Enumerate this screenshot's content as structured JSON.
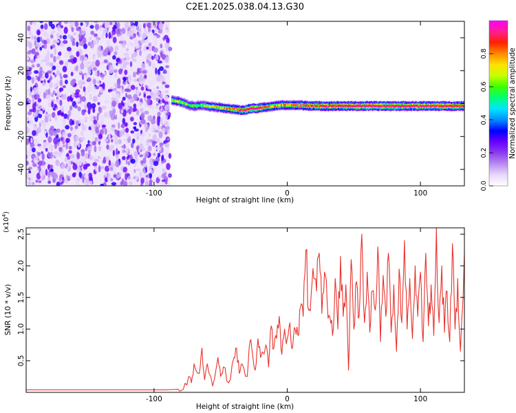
{
  "title": "C2E1.2025.038.04.13.G30",
  "colors": {
    "snr_line": "#e8302a",
    "spectro_scatter": "#8a2be2",
    "colormap": [
      "#ffffff",
      "#e7d7fb",
      "#b98cf0",
      "#8b3cf0",
      "#6a00ff",
      "#0000ff",
      "#0090ff",
      "#00e5ff",
      "#00ff7a",
      "#3cff00",
      "#c8ff00",
      "#ffe100",
      "#ff8a00",
      "#ff2000",
      "#ff1f8f",
      "#ff00ff"
    ]
  },
  "chart_data": [
    {
      "type": "heatmap",
      "xlabel": "Height of straight line (km)",
      "ylabel": "Frequency (Hz)",
      "xlim": [
        -196,
        133
      ],
      "ylim": [
        -50,
        50
      ],
      "xticks": [
        -100,
        0,
        100
      ],
      "yticks": [
        -40,
        -20,
        0,
        20,
        40
      ],
      "colorbar": {
        "label": "Normalized spectral amplitude",
        "range": [
          0.0,
          1.0
        ],
        "ticks": [
          "0.0",
          "0.2",
          "0.4",
          "0.6",
          "0.8"
        ],
        "tick_values": [
          0.0,
          0.2,
          0.4,
          0.6,
          0.8
        ]
      },
      "noise_region_x": [
        -196,
        -88
      ],
      "ridge": {
        "x": [
          -87,
          -80,
          -74,
          -70,
          -65,
          -60,
          -55,
          -50,
          -45,
          -40,
          -35,
          -32,
          -28,
          -24,
          -20,
          -15,
          -10,
          -5,
          0,
          10,
          20,
          40,
          60,
          80,
          100,
          120,
          133
        ],
        "y": [
          2.0,
          1.0,
          -1.0,
          -1.5,
          -1.0,
          -1.5,
          -2.0,
          -2.5,
          -3.0,
          -3.5,
          -4.0,
          -4.0,
          -3.0,
          -3.0,
          -2.5,
          -2.0,
          -1.5,
          -1.0,
          -1.0,
          -1.0,
          -1.5,
          -1.5,
          -1.5,
          -1.5,
          -1.5,
          -1.5,
          -1.5
        ],
        "amplitude": [
          0.6,
          0.6,
          0.5,
          0.55,
          0.55,
          0.6,
          0.6,
          0.65,
          0.7,
          0.75,
          0.8,
          0.85,
          0.9,
          0.9,
          0.85,
          0.7,
          0.7,
          0.7,
          0.7,
          0.75,
          0.8,
          0.85,
          0.9,
          0.85,
          0.85,
          0.85,
          0.8
        ]
      }
    },
    {
      "type": "line",
      "xlabel": "Height of straight line (km)",
      "ylabel": "SNR (10 * v/v)",
      "multiplier_label": "(x10",
      "multiplier_exp": "4",
      "xlim": [
        -196,
        133
      ],
      "ylim": [
        0,
        2.6
      ],
      "xticks": [
        -100,
        0,
        100
      ],
      "yticks": [
        0.5,
        1.0,
        1.5,
        2.0,
        2.5
      ],
      "ytick_labels": [
        "0.5",
        "1.0",
        "1.5",
        "2.0",
        "2.5"
      ],
      "series": [
        {
          "x": [
            -196,
            -180,
            -160,
            -140,
            -120,
            -100,
            -90,
            -82,
            -78,
            -74,
            -72,
            -70,
            -66,
            -64,
            -62,
            -60,
            -56,
            -52,
            -50,
            -48,
            -44,
            -40,
            -38,
            -36,
            -34,
            -30,
            -28,
            -26,
            -24,
            -22,
            -20,
            -16,
            -14,
            -12,
            -10,
            -8,
            -6,
            -4,
            -2,
            0,
            2,
            4,
            6,
            8,
            10,
            12,
            14,
            16,
            18,
            20,
            22,
            24,
            26,
            28,
            30,
            32,
            34,
            36,
            38,
            40,
            42,
            44,
            46,
            48,
            50,
            52,
            54,
            56,
            58,
            60,
            62,
            64,
            66,
            68,
            70,
            72,
            74,
            76,
            78,
            80,
            82,
            84,
            86,
            88,
            90,
            92,
            94,
            96,
            98,
            100,
            102,
            104,
            106,
            108,
            110,
            112,
            114,
            116,
            118,
            120,
            122,
            124,
            126,
            128,
            130,
            133
          ],
          "y": [
            0.04,
            0.04,
            0.04,
            0.04,
            0.04,
            0.04,
            0.04,
            0.05,
            0.05,
            0.25,
            0.15,
            0.45,
            0.3,
            0.7,
            0.2,
            0.45,
            0.1,
            0.55,
            0.25,
            0.4,
            0.15,
            0.55,
            0.7,
            0.3,
            0.45,
            0.25,
            0.8,
            0.6,
            0.35,
            0.85,
            0.55,
            0.75,
            0.4,
            1.05,
            0.7,
            0.85,
            1.2,
            0.6,
            1.0,
            0.85,
            1.1,
            0.7,
            1.0,
            0.9,
            1.35,
            1.2,
            2.25,
            1.3,
            1.55,
            1.8,
            1.6,
            2.2,
            1.25,
            1.9,
            1.4,
            1.2,
            0.9,
            1.8,
            1.0,
            2.15,
            1.2,
            1.7,
            0.35,
            2.1,
            1.0,
            1.75,
            1.2,
            2.5,
            1.1,
            1.9,
            0.95,
            1.6,
            1.3,
            2.3,
            0.8,
            1.85,
            1.2,
            2.2,
            0.95,
            1.7,
            0.65,
            1.95,
            1.1,
            2.4,
            1.0,
            1.8,
            0.85,
            2.0,
            1.2,
            1.9,
            0.8,
            2.2,
            1.05,
            1.7,
            0.9,
            2.6,
            1.1,
            2.0,
            0.95,
            1.6,
            0.8,
            2.35,
            1.0,
            1.8,
            0.65,
            2.2
          ]
        }
      ]
    }
  ]
}
